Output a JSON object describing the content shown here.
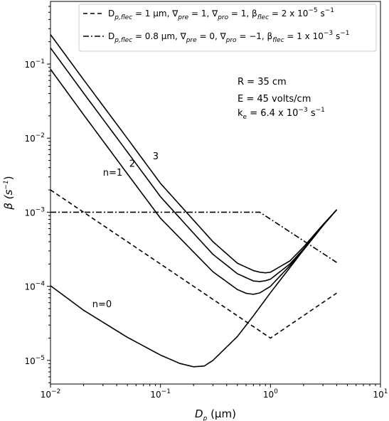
{
  "chart_data": {
    "type": "line",
    "xscale": "log",
    "yscale": "log",
    "xlim": [
      0.01,
      10
    ],
    "ylim": [
      4.8e-06,
      0.7
    ],
    "xlabel": {
      "main": "D",
      "sub": "p",
      "unit": " (μm)"
    },
    "ylabel": {
      "main": "β (s",
      "sup": "−1",
      "close": ")"
    },
    "x_ticks": [
      {
        "base": "10",
        "exp": "−2",
        "value": 0.01
      },
      {
        "base": "10",
        "exp": "−1",
        "value": 0.1
      },
      {
        "base": "10",
        "exp": "0",
        "value": 1
      },
      {
        "base": "10",
        "exp": "1",
        "value": 10
      }
    ],
    "y_ticks": [
      {
        "base": "10",
        "exp": "−5",
        "value": 1e-05
      },
      {
        "base": "10",
        "exp": "−4",
        "value": 0.0001
      },
      {
        "base": "10",
        "exp": "−3",
        "value": 0.001
      },
      {
        "base": "10",
        "exp": "−2",
        "value": 0.01
      },
      {
        "base": "10",
        "exp": "−1",
        "value": 0.1
      }
    ],
    "annotation_params": {
      "R": "R = 35 cm",
      "E": "E = 45 volts/cm",
      "ke_prefix": "k",
      "ke_sub": "e",
      "ke_mid": " = 6.4 x 10",
      "ke_exp": "−3",
      "ke_unit": " s",
      "ke_unit_exp": "−1"
    },
    "curve_labels": [
      {
        "text": "n=0",
        "x": 0.024,
        "y": 5.2e-05
      },
      {
        "text": "n=1",
        "x": 0.03,
        "y": 0.0031
      },
      {
        "text": "2",
        "x": 0.052,
        "y": 0.0041
      },
      {
        "text": "3",
        "x": 0.085,
        "y": 0.0052
      }
    ],
    "legend": {
      "placement": "top-right",
      "entries": [
        {
          "style": "dashed",
          "text": "D_{p,flec} = 1 μm, ∇_{pre} = 1, ∇_{pro} = 1, β_{flec} = 2 x 10^{−5} s^{−1}",
          "parts": [
            {
              "t": "D"
            },
            {
              "t": "p,flec",
              "s": "sub",
              "i": true
            },
            {
              "t": " = 1 μm, ∇"
            },
            {
              "t": "pre",
              "s": "sub",
              "i": true
            },
            {
              "t": " = 1, ∇"
            },
            {
              "t": "pro",
              "s": "sub",
              "i": true
            },
            {
              "t": " = 1, β"
            },
            {
              "t": "flec",
              "s": "sub",
              "i": true
            },
            {
              "t": " = 2 x 10"
            },
            {
              "t": "−5",
              "s": "sup"
            },
            {
              "t": " s"
            },
            {
              "t": "−1",
              "s": "sup"
            }
          ]
        },
        {
          "style": "dashdot",
          "text": "D_{p,flec} = 0.8 μm, ∇_{pre} = 0, ∇_{pro} = −1, β_{flec} = 1 x 10^{−3} s^{−1}",
          "parts": [
            {
              "t": "D"
            },
            {
              "t": "p,flec",
              "s": "sub",
              "i": true
            },
            {
              "t": " = 0.8 μm, ∇"
            },
            {
              "t": "pre",
              "s": "sub",
              "i": true
            },
            {
              "t": " = 0, ∇"
            },
            {
              "t": "pro",
              "s": "sub",
              "i": true
            },
            {
              "t": " = −1, β"
            },
            {
              "t": "flec",
              "s": "sub",
              "i": true
            },
            {
              "t": " = 1 x 10"
            },
            {
              "t": "−3",
              "s": "sup"
            },
            {
              "t": " s"
            },
            {
              "t": "−1",
              "s": "sup"
            }
          ]
        }
      ]
    },
    "series": [
      {
        "style": "solid",
        "points": [
          [
            0.01,
            0.000102
          ],
          [
            0.02,
            4.75e-05
          ],
          [
            0.05,
            2.05e-05
          ],
          [
            0.1,
            1.18e-05
          ],
          [
            0.15,
            9.1e-06
          ],
          [
            0.2,
            8.2e-06
          ],
          [
            0.25,
            8.4e-06
          ],
          [
            0.3,
            1e-05
          ],
          [
            0.5,
            2.1e-05
          ],
          [
            0.7,
            4e-05
          ],
          [
            1,
            8.2e-05
          ],
          [
            2,
            0.00031
          ],
          [
            3,
            0.00066
          ],
          [
            4,
            0.00108
          ]
        ]
      },
      {
        "style": "solid",
        "points": [
          [
            0.01,
            0.085
          ],
          [
            0.02,
            0.0207
          ],
          [
            0.05,
            0.0033
          ],
          [
            0.1,
            0.00083
          ],
          [
            0.2,
            0.00029
          ],
          [
            0.3,
            0.000157
          ],
          [
            0.5,
            9.05e-05
          ],
          [
            0.6,
            8.05e-05
          ],
          [
            0.7,
            7.8e-05
          ],
          [
            0.8,
            8.15e-05
          ],
          [
            1,
            0.0001
          ],
          [
            1.5,
            0.00019
          ],
          [
            2,
            0.00031
          ],
          [
            3,
            0.00066
          ],
          [
            4,
            0.00108
          ]
        ]
      },
      {
        "style": "solid",
        "points": [
          [
            0.01,
            0.165
          ],
          [
            0.02,
            0.0405
          ],
          [
            0.05,
            0.0065
          ],
          [
            0.1,
            0.00162
          ],
          [
            0.2,
            0.00052
          ],
          [
            0.3,
            0.00027
          ],
          [
            0.5,
            0.000148
          ],
          [
            0.7,
            0.000118
          ],
          [
            0.8,
            0.000116
          ],
          [
            0.9,
            0.000119
          ],
          [
            1,
            0.000125
          ],
          [
            1.5,
            0.0002
          ],
          [
            2,
            0.00032
          ],
          [
            3,
            0.00067
          ],
          [
            4,
            0.00108
          ]
        ]
      },
      {
        "style": "solid",
        "points": [
          [
            0.01,
            0.25
          ],
          [
            0.02,
            0.0615
          ],
          [
            0.05,
            0.0099
          ],
          [
            0.1,
            0.00245
          ],
          [
            0.2,
            0.00078
          ],
          [
            0.3,
            0.0004
          ],
          [
            0.5,
            0.000205
          ],
          [
            0.7,
            0.000163
          ],
          [
            0.8,
            0.000155
          ],
          [
            0.9,
            0.000152
          ],
          [
            1,
            0.000155
          ],
          [
            1.5,
            0.00022
          ],
          [
            2,
            0.00034
          ],
          [
            3,
            0.00068
          ],
          [
            4,
            0.00108
          ]
        ]
      },
      {
        "style": "dashed",
        "points": [
          [
            0.01,
            0.002
          ],
          [
            1,
            2e-05
          ],
          [
            4,
            8.1e-05
          ]
        ]
      },
      {
        "style": "dashdot",
        "points": [
          [
            0.01,
            0.001
          ],
          [
            0.8,
            0.001
          ],
          [
            4,
            0.00021
          ]
        ]
      }
    ]
  }
}
